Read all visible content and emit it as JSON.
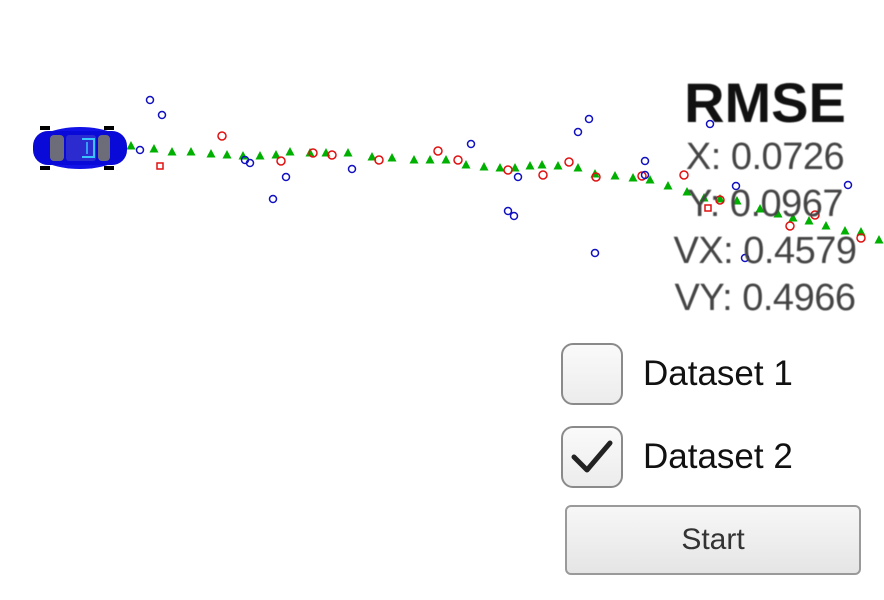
{
  "rmse": {
    "title": "RMSE",
    "x": "X: 0.0726",
    "y": "Y: 0.0967",
    "vx": "VX: 0.4579",
    "vy": "VY: 0.4966"
  },
  "datasets": [
    {
      "label": "Dataset 1",
      "checked": false
    },
    {
      "label": "Dataset 2",
      "checked": true
    }
  ],
  "start_label": "Start",
  "colors": {
    "car": "#1010e0",
    "ground_truth": "#00b000",
    "lidar": "#e01010",
    "radar": "#1010c0"
  },
  "icons": {
    "car": "car-icon",
    "checkmark": "checkmark-icon"
  }
}
